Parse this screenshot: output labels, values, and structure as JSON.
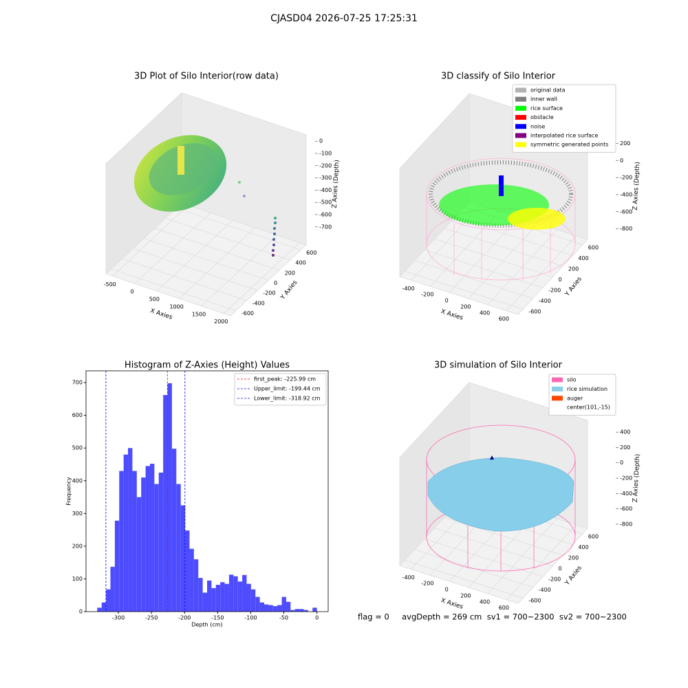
{
  "title": "CJASD04 2026-07-25 17:25:31",
  "footer": "flag = 0     avgDepth = 269 cm  sv1 = 700~2300  sv2 = 700~2300",
  "chart_data": [
    {
      "type": "scatter3d",
      "title": "3D Plot of Silo Interior(row data)",
      "xlabel": "X Axies",
      "ylabel": "Y Axies",
      "zlabel": "Z Axies (Depth)",
      "xlim": [
        -650,
        2150
      ],
      "ylim": [
        -700,
        700
      ],
      "zlim": [
        -780,
        80
      ],
      "xticks": [
        -500,
        0,
        500,
        1000,
        1500,
        2000
      ],
      "yticks": [
        -600,
        -400,
        -200,
        0,
        200,
        400,
        600
      ],
      "zticks": [
        -700,
        -600,
        -500,
        -400,
        -300,
        -200,
        -100,
        0
      ]
    },
    {
      "type": "scatter3d",
      "title": "3D classify of Silo Interior",
      "xlim": [
        -520,
        720
      ],
      "ylim": [
        -700,
        700
      ],
      "zlim": [
        -900,
        300
      ],
      "xlabel": "X Axies",
      "ylabel": "Y Axies",
      "zlabel": "Z Axies (Depth)",
      "xticks": [
        -400,
        -200,
        0,
        200,
        400,
        600
      ],
      "yticks": [
        -600,
        -400,
        -200,
        0,
        200,
        400,
        600
      ],
      "zticks": [
        -800,
        -600,
        -400,
        -200,
        0,
        200
      ],
      "legend": [
        {
          "name": "original data",
          "color": "#b3b3b3"
        },
        {
          "name": "inner wall",
          "color": "#808080"
        },
        {
          "name": "rice surface",
          "color": "#00ff00"
        },
        {
          "name": "obstacle",
          "color": "#ff0000"
        },
        {
          "name": "noise",
          "color": "#0000ff"
        },
        {
          "name": "interpolated rice surface",
          "color": "#800080"
        },
        {
          "name": "symmetric generated points",
          "color": "#ffff00"
        }
      ]
    },
    {
      "type": "histogram",
      "title": "Histogram of Z-Axies (Height) Values",
      "xlabel": "Depth (cm)",
      "ylabel": "Frequency",
      "color": "#4d4dff",
      "bins": [
        -332,
        -325.36,
        -318.72,
        -312.08,
        -305.44,
        -298.8,
        -292.16,
        -285.52,
        -278.88,
        -272.24,
        -265.6,
        -258.96,
        -252.32,
        -245.68,
        -239.04,
        -232.4,
        -225.76,
        -219.12,
        -212.48,
        -205.84,
        -199.2,
        -192.56,
        -185.92,
        -179.28,
        -172.64,
        -166,
        -159.36,
        -152.72,
        -146.08,
        -139.44,
        -132.8,
        -126.16,
        -119.52,
        -112.88,
        -106.24,
        -99.6,
        -92.96,
        -86.32,
        -79.68,
        -73.04,
        -66.4,
        -59.76,
        -53.12,
        -46.48,
        -39.84,
        -33.2,
        -26.56,
        -19.92,
        -13.28,
        -6.64,
        0
      ],
      "values": [
        12,
        28,
        68,
        137,
        278,
        430,
        480,
        500,
        430,
        350,
        410,
        445,
        452,
        390,
        425,
        662,
        698,
        498,
        390,
        325,
        248,
        192,
        160,
        103,
        58,
        95,
        72,
        82,
        90,
        85,
        113,
        108,
        92,
        112,
        85,
        68,
        45,
        28,
        22,
        20,
        17,
        20,
        45,
        30,
        5,
        8,
        8,
        5,
        0,
        12
      ],
      "xlim": [
        -349,
        17
      ],
      "ylim": [
        0,
        736
      ],
      "xticks": [
        -300,
        -250,
        -200,
        -150,
        -100,
        -50,
        0
      ],
      "yticks": [
        0,
        100,
        200,
        300,
        400,
        500,
        600,
        700
      ],
      "vlines": [
        {
          "name": "first_peak: -225.99 cm",
          "x": -225.99,
          "color": "#ff0000"
        },
        {
          "name": "Upper_limit: -199.44 cm",
          "x": -199.44,
          "color": "#0000ff"
        },
        {
          "name": "Lower_limit: -318.92 cm",
          "x": -318.92,
          "color": "#0000ff"
        }
      ]
    },
    {
      "type": "scatter3d",
      "title": "3D simulation of Silo Interior",
      "xlim": [
        -520,
        720
      ],
      "ylim": [
        -700,
        700
      ],
      "zlim": [
        -900,
        500
      ],
      "xlabel": "X Axies",
      "ylabel": "Y Axies",
      "zlabel": "Z Axies (Depth)",
      "xticks": [
        -400,
        -200,
        0,
        200,
        400,
        600
      ],
      "yticks": [
        -600,
        -400,
        -200,
        0,
        200,
        400,
        600
      ],
      "zticks": [
        -800,
        -600,
        -400,
        -200,
        0,
        200,
        400
      ],
      "legend": [
        {
          "name": "silo",
          "color": "#ff69b4"
        },
        {
          "name": "rice simulation",
          "color": "#87ceeb"
        },
        {
          "name": "auger",
          "color": "#ff4500"
        },
        {
          "name": "center(101,-15)",
          "color": null
        }
      ]
    }
  ]
}
